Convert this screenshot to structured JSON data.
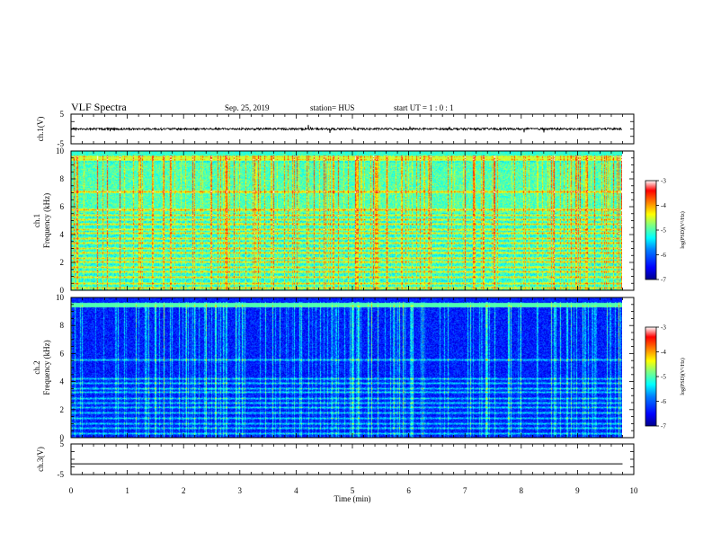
{
  "header": {
    "title": "VLF Spectra",
    "date": "Sep. 25, 2019",
    "station": "station= HUS",
    "start_time": "start  UT =  1 : 0  : 1"
  },
  "colors": {
    "axis": "#000000",
    "trace": "#000000",
    "colormap": [
      "#00008c",
      "#0000ff",
      "#0080ff",
      "#00ffff",
      "#80ff80",
      "#ffff00",
      "#ff8000",
      "#ff0000",
      "#ffffff"
    ]
  },
  "chart_data": [
    {
      "type": "line",
      "panel": "ch1-waveform",
      "ylabel": "ch.1(V)",
      "ylim": [
        -5,
        5
      ],
      "yticks": [
        "5",
        "-5"
      ],
      "xlim": [
        0,
        10
      ],
      "description_values": {
        "baseline": 0,
        "approx_amplitude": 0.4
      }
    },
    {
      "type": "heatmap",
      "panel": "ch1-spectrogram",
      "ylabel": "ch.1\nFrequency (kHz)",
      "ylim": [
        0,
        10
      ],
      "yticks": [
        "0",
        "2",
        "4",
        "6",
        "8",
        "10"
      ],
      "xlim": [
        0,
        10
      ],
      "data_end_min": 9.8,
      "background_level": 0.45,
      "bands_khz": [
        0.2,
        0.5,
        1.0,
        1.35,
        1.7,
        2.05,
        2.3,
        2.7,
        3.05,
        3.4,
        3.75,
        4.1,
        4.4,
        4.75,
        5.1,
        5.45,
        5.8,
        7.1,
        9.45,
        9.6
      ],
      "colorbar": {
        "ticks": [
          "-3",
          "-4",
          "-5",
          "-6",
          "-7"
        ],
        "label": "log(PSD)(V²/Hz)",
        "range": [
          -7,
          -3
        ]
      }
    },
    {
      "type": "heatmap",
      "panel": "ch2-spectrogram",
      "ylabel": "ch.2\nFrequency (kHz)",
      "ylim": [
        0,
        10
      ],
      "yticks": [
        "0",
        "2",
        "4",
        "6",
        "8",
        "10"
      ],
      "xlim": [
        0,
        10
      ],
      "data_end_min": 9.8,
      "background_level": 0.16,
      "bands_khz": [
        0.35,
        0.7,
        1.05,
        1.4,
        1.8,
        2.15,
        2.5,
        2.85,
        3.25,
        3.55,
        3.9,
        4.25,
        5.6,
        9.4
      ],
      "colorbar": {
        "ticks": [
          "-3",
          "-4",
          "-5",
          "-6",
          "-7"
        ],
        "label": "log(PSD)(V²/Hz)",
        "range": [
          -7,
          -3
        ]
      }
    },
    {
      "type": "line",
      "panel": "ch3-waveform",
      "ylabel": "ch.3(V)",
      "ylim": [
        -5,
        5
      ],
      "yticks": [
        "5",
        "-5"
      ],
      "xlim": [
        0,
        10
      ],
      "xlabel": "Time  (min)",
      "xticks": [
        "0",
        "1",
        "2",
        "3",
        "4",
        "5",
        "6",
        "7",
        "8",
        "9",
        "10"
      ],
      "description_values": {
        "baseline": -1.5,
        "approx_amplitude": 0
      }
    }
  ]
}
